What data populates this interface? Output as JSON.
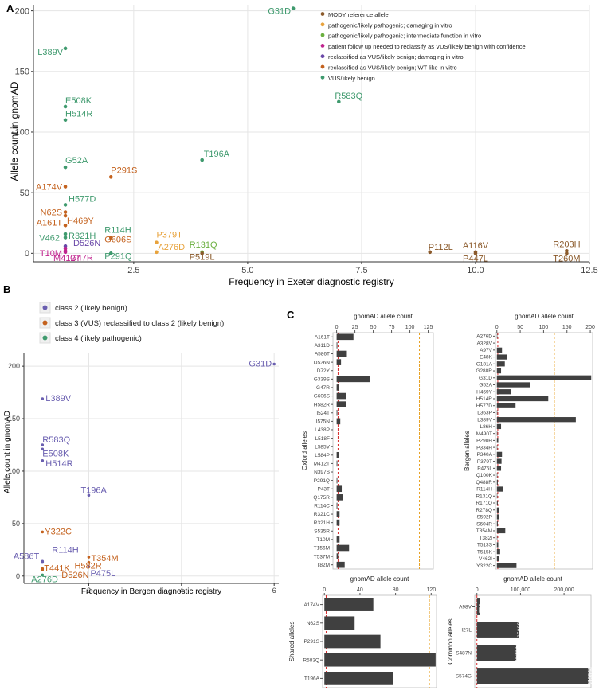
{
  "panels": {
    "A": "A",
    "B": "B",
    "C": "C"
  },
  "chart_data": [
    {
      "id": "A",
      "type": "scatter",
      "xlabel": "Frequency in Exeter diagnostic registry",
      "ylabel": "Allele count in gnomAD",
      "xlim": [
        0.3,
        12.5
      ],
      "ylim": [
        -7,
        205
      ],
      "xticks": [
        "2.5",
        "5.0",
        "7.5",
        "10.0",
        "12.5"
      ],
      "xtick_values": [
        2.5,
        5.0,
        7.5,
        10.0,
        12.5
      ],
      "yticks": [
        "0",
        "50",
        "100",
        "150",
        "200"
      ],
      "ytick_values": [
        0,
        50,
        100,
        150,
        200
      ],
      "legend": [
        {
          "label": "MODY reference allele",
          "color": "#8B5A2B"
        },
        {
          "label": "pathogenic/likely pathogenic; damaging in vitro",
          "color": "#E8A33D"
        },
        {
          "label": "pathogenic/likely pathogenic; intermediate function in vitro",
          "color": "#6AAF3F"
        },
        {
          "label": "patient follow up needed to reclassify as VUS/likely benign with confidence",
          "color": "#C0238E"
        },
        {
          "label": "reclassified as VUS/likely benign; damaging in vitro",
          "color": "#6A48A8"
        },
        {
          "label": "reclassified as VUS/likely benign; WT-like in vitro",
          "color": "#C4621E"
        },
        {
          "label": "VUS/likely benign",
          "color": "#3F9A6E"
        }
      ],
      "points": [
        {
          "label": "G31D",
          "x": 6,
          "y": 202,
          "color": "#3F9A6E"
        },
        {
          "label": "L389V",
          "x": 1,
          "y": 169,
          "color": "#3F9A6E"
        },
        {
          "label": "R583Q",
          "x": 7,
          "y": 125,
          "color": "#3F9A6E"
        },
        {
          "label": "E508K",
          "x": 1,
          "y": 121,
          "color": "#3F9A6E"
        },
        {
          "label": "H514R",
          "x": 1,
          "y": 110,
          "color": "#3F9A6E"
        },
        {
          "label": "T196A",
          "x": 4,
          "y": 77,
          "color": "#3F9A6E"
        },
        {
          "label": "G52A",
          "x": 1,
          "y": 71,
          "color": "#3F9A6E"
        },
        {
          "label": "P291S",
          "x": 2,
          "y": 63,
          "color": "#C4621E"
        },
        {
          "label": "A174V",
          "x": 1,
          "y": 55,
          "color": "#C4621E"
        },
        {
          "label": "H577D",
          "x": 1,
          "y": 40,
          "color": "#3F9A6E"
        },
        {
          "label": "N62S",
          "x": 1,
          "y": 34,
          "color": "#C4621E"
        },
        {
          "label": "H469Y",
          "x": 1,
          "y": 31,
          "color": "#C4621E"
        },
        {
          "label": "A161T",
          "x": 1,
          "y": 23,
          "color": "#C4621E"
        },
        {
          "label": "R321H",
          "x": 1,
          "y": 16,
          "color": "#3F9A6E"
        },
        {
          "label": "R114H",
          "x": 2,
          "y": 13,
          "color": "#3F9A6E"
        },
        {
          "label": "G606S",
          "x": 2,
          "y": 13,
          "color": "#C4621E"
        },
        {
          "label": "V462I",
          "x": 1,
          "y": 13,
          "color": "#3F9A6E"
        },
        {
          "label": "D526N",
          "x": 1,
          "y": 6,
          "color": "#6A48A8"
        },
        {
          "label": "P379T",
          "x": 3,
          "y": 9,
          "color": "#E8A33D"
        },
        {
          "label": "A276D",
          "x": 3,
          "y": 1,
          "color": "#E8A33D"
        },
        {
          "label": "R131Q",
          "x": 4,
          "y": 1,
          "color": "#6AAF3F"
        },
        {
          "label": "P519L",
          "x": 4,
          "y": 0,
          "color": "#8B5A2B"
        },
        {
          "label": "P291Q",
          "x": 2,
          "y": 0,
          "color": "#3F9A6E"
        },
        {
          "label": "T10M",
          "x": 1,
          "y": 4,
          "color": "#C0238E"
        },
        {
          "label": "G47R",
          "x": 1,
          "y": 2,
          "color": "#C0238E"
        },
        {
          "label": "M412T",
          "x": 1,
          "y": 1,
          "color": "#C0238E"
        },
        {
          "label": "P112L",
          "x": 9,
          "y": 1,
          "color": "#8B5A2B"
        },
        {
          "label": "A116V",
          "x": 10,
          "y": 1,
          "color": "#8B5A2B"
        },
        {
          "label": "P447L",
          "x": 10,
          "y": 0,
          "color": "#8B5A2B"
        },
        {
          "label": "R203H",
          "x": 12,
          "y": 2,
          "color": "#8B5A2B"
        },
        {
          "label": "T260M",
          "x": 12,
          "y": 0,
          "color": "#8B5A2B"
        }
      ]
    },
    {
      "id": "B",
      "type": "scatter",
      "xlabel": "Frequency in Bergen diagnostic registry",
      "ylabel": "Allele count in gnomAD",
      "xlim": [
        0.6,
        6.1
      ],
      "ylim": [
        -7,
        213
      ],
      "xticks": [
        "2",
        "4",
        "6"
      ],
      "xtick_values": [
        2,
        4,
        6
      ],
      "yticks": [
        "0",
        "50",
        "100",
        "150",
        "200"
      ],
      "ytick_values": [
        0,
        50,
        100,
        150,
        200
      ],
      "legend": [
        {
          "label": "class 2 (likely benign)",
          "color": "#6A5FB0"
        },
        {
          "label": "class 3 (VUS) reclassified to class 2 (likely benign)",
          "color": "#C4621E"
        },
        {
          "label": "class 4  (likely pathogenic)",
          "color": "#3F9A6E"
        }
      ],
      "points": [
        {
          "label": "G31D",
          "x": 6,
          "y": 202,
          "color": "#6A5FB0"
        },
        {
          "label": "L389V",
          "x": 1,
          "y": 169,
          "color": "#6A5FB0"
        },
        {
          "label": "R583Q",
          "x": 1,
          "y": 125,
          "color": "#6A5FB0"
        },
        {
          "label": "E508K",
          "x": 1,
          "y": 121,
          "color": "#6A5FB0"
        },
        {
          "label": "H514R",
          "x": 1,
          "y": 110,
          "color": "#6A5FB0"
        },
        {
          "label": "T196A",
          "x": 2,
          "y": 77,
          "color": "#6A5FB0"
        },
        {
          "label": "Y322C",
          "x": 1,
          "y": 42,
          "color": "#C4621E"
        },
        {
          "label": "R114H",
          "x": 1,
          "y": 13,
          "color": "#6A5FB0"
        },
        {
          "label": "A586T",
          "x": 1,
          "y": 14,
          "color": "#6A5FB0"
        },
        {
          "label": "T354M",
          "x": 2,
          "y": 18,
          "color": "#C4621E"
        },
        {
          "label": "H582R",
          "x": 2,
          "y": 13,
          "color": "#C4621E"
        },
        {
          "label": "T441K",
          "x": 1,
          "y": 7,
          "color": "#C4621E"
        },
        {
          "label": "P475L",
          "x": 2,
          "y": 9,
          "color": "#6A5FB0"
        },
        {
          "label": "D526N",
          "x": 1,
          "y": 6,
          "color": "#C4621E"
        },
        {
          "label": "A276D",
          "x": 1,
          "y": 1,
          "color": "#3F9A6E"
        }
      ]
    },
    {
      "id": "C-oxford",
      "type": "bar",
      "title": "gnomAD allele count",
      "ylabel": "Oxford alleles",
      "xlim": [
        -5,
        132
      ],
      "xticks": [
        "0",
        "25",
        "50",
        "75",
        "100",
        "125"
      ],
      "xtick_values": [
        0,
        25,
        50,
        75,
        100,
        125
      ],
      "refline_red": 2,
      "refline_orange": 113,
      "categories": [
        "A161T",
        "A311D",
        "A586T",
        "D526N",
        "D72Y",
        "G339S",
        "G47R",
        "G606S",
        "H582R",
        "I524T",
        "I575N",
        "L438P",
        "L518F",
        "L585V",
        "L584P",
        "M412T",
        "N397S",
        "P291Q",
        "P43T",
        "Q175R",
        "R114C",
        "R321C",
        "R321H",
        "S535R",
        "T10M",
        "T156M",
        "T537M",
        "T82M"
      ],
      "values": [
        23,
        1,
        14,
        6,
        0,
        45,
        3,
        13,
        13,
        1,
        5,
        0,
        0,
        0,
        3,
        1,
        0,
        1,
        7,
        9,
        1,
        4,
        4,
        0,
        4,
        17,
        2,
        11
      ]
    },
    {
      "id": "C-bergen",
      "type": "bar",
      "title": "gnomAD allele count",
      "ylabel": "Bergen alleles",
      "xlim": [
        -3,
        205
      ],
      "xticks": [
        "0",
        "50",
        "100",
        "150",
        "200"
      ],
      "xtick_values": [
        0,
        50,
        100,
        150,
        200
      ],
      "refline_red": 2,
      "refline_orange": 123,
      "categories": [
        "A276D",
        "A328V",
        "A97V",
        "E48K",
        "G181A",
        "G288R",
        "G31D",
        "G52A",
        "H469Y",
        "H514R",
        "H577D",
        "L363P",
        "L389V",
        "L86H",
        "M490T",
        "P290H",
        "P334H",
        "P340A",
        "P379T",
        "P475L",
        "Q100K",
        "Q488R",
        "R114H",
        "R131Q",
        "R171Q",
        "R278Q",
        "S592P",
        "S604R",
        "T354M",
        "T382I",
        "T513S",
        "T515K",
        "V462I",
        "Y322C"
      ],
      "values": [
        1,
        0,
        11,
        22,
        17,
        9,
        202,
        71,
        31,
        110,
        40,
        1,
        169,
        9,
        1,
        3,
        1,
        11,
        10,
        9,
        1,
        2,
        13,
        1,
        2,
        4,
        4,
        2,
        18,
        1,
        3,
        7,
        4,
        42
      ]
    },
    {
      "id": "C-shared",
      "type": "bar",
      "title": "gnomAD allele count",
      "ylabel": "Shared alleles",
      "xlim": [
        -2,
        126
      ],
      "xticks": [
        "0",
        "40",
        "80",
        "120"
      ],
      "xtick_values": [
        0,
        40,
        80,
        120
      ],
      "refline_red": 2,
      "refline_orange": 118,
      "categories": [
        "A174V",
        "N62S",
        "P291S",
        "R583Q",
        "T196A"
      ],
      "values": [
        55,
        34,
        63,
        125,
        77
      ]
    },
    {
      "id": "C-common",
      "type": "bar",
      "title": "gnomAD allele count",
      "ylabel": "Common alleles",
      "xlim": [
        -5000,
        262000
      ],
      "xticks": [
        "0",
        "100,000",
        "200,000"
      ],
      "xtick_values": [
        0,
        100000,
        200000
      ],
      "refline_red": 0,
      "categories": [
        "A98V",
        "I27L",
        "S487N",
        "S574G"
      ],
      "values": [
        7600,
        96619,
        90330,
        258611
      ],
      "value_labels": [
        "7600",
        "96619",
        "90330",
        "258611"
      ]
    }
  ]
}
